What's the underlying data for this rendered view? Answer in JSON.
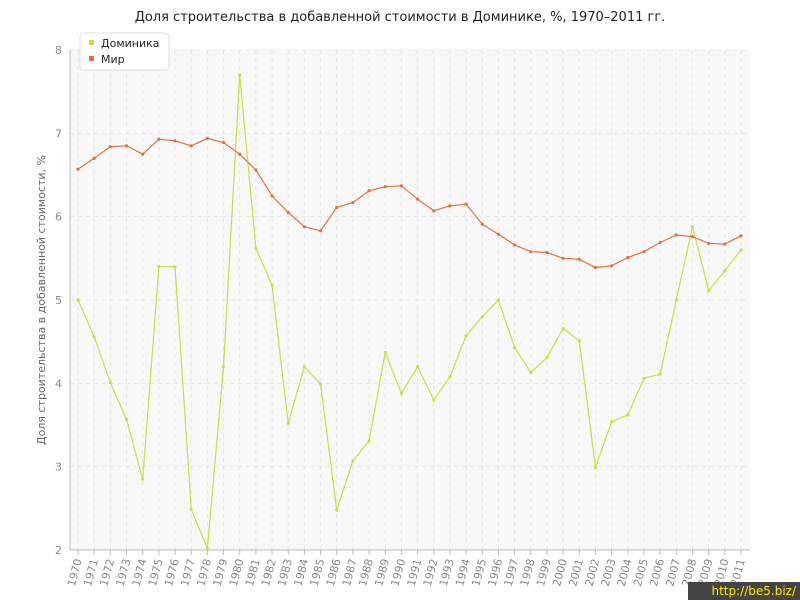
{
  "chart_data": {
    "type": "line",
    "title": "Доля строительства в добавленной стоимости в Доминике, %, 1970–2011 гг.",
    "ylabel": "Доля строительства в добавленной стоимости, %",
    "xlabel": "",
    "ylim": [
      2,
      8
    ],
    "y_ticks": [
      2,
      3,
      4,
      5,
      6,
      7,
      8
    ],
    "grid": true,
    "legend_position": "top-left",
    "x": [
      "1970",
      "1971",
      "1972",
      "1973",
      "1974",
      "1975",
      "1976",
      "1977",
      "1978",
      "1979",
      "1980",
      "1981",
      "1982",
      "1983",
      "1984",
      "1985",
      "1986",
      "1987",
      "1988",
      "1989",
      "1990",
      "1991",
      "1992",
      "1993",
      "1994",
      "1995",
      "1996",
      "1997",
      "1998",
      "1999",
      "2000",
      "2001",
      "2002",
      "2003",
      "2004",
      "2005",
      "2006",
      "2007",
      "2008",
      "2009",
      "2010",
      "2011"
    ],
    "series": [
      {
        "name": "Доминика",
        "color": "#c6e045",
        "values": [
          5.0,
          4.56,
          4.01,
          3.57,
          2.85,
          5.4,
          5.4,
          2.49,
          2.02,
          4.2,
          7.7,
          5.62,
          5.18,
          3.52,
          4.2,
          3.99,
          2.48,
          3.07,
          3.31,
          4.37,
          3.88,
          4.2,
          3.8,
          4.08,
          4.57,
          4.8,
          5.0,
          4.43,
          4.13,
          4.31,
          4.66,
          4.51,
          2.99,
          3.54,
          3.62,
          4.06,
          4.11,
          5.0,
          5.88,
          5.11,
          5.35,
          5.6
        ]
      },
      {
        "name": "Мир",
        "color": "#e07040",
        "values": [
          6.57,
          6.7,
          6.84,
          6.85,
          6.75,
          6.93,
          6.91,
          6.85,
          6.94,
          6.89,
          6.75,
          6.56,
          6.25,
          6.05,
          5.88,
          5.83,
          6.11,
          6.17,
          6.31,
          6.36,
          6.37,
          6.21,
          6.07,
          6.13,
          6.15,
          5.91,
          5.79,
          5.66,
          5.58,
          5.57,
          5.5,
          5.49,
          5.39,
          5.41,
          5.51,
          5.58,
          5.69,
          5.78,
          5.76,
          5.68,
          5.67,
          5.77
        ]
      }
    ]
  },
  "watermark": "http://be5.biz/"
}
